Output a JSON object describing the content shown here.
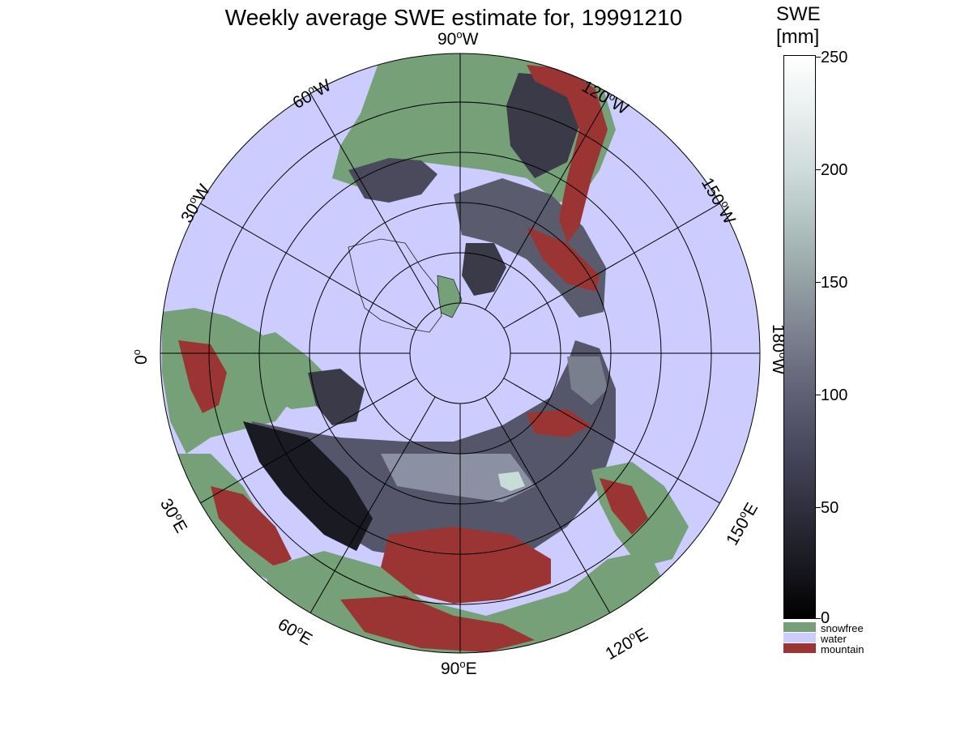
{
  "title": "Weekly average SWE estimate for, 19991210",
  "map": {
    "projection": "north-polar azimuthal",
    "longitude_labels": [
      {
        "key": "90W",
        "deg": "90",
        "dir": "W"
      },
      {
        "key": "120W",
        "deg": "120",
        "dir": "W"
      },
      {
        "key": "150W",
        "deg": "150",
        "dir": "W"
      },
      {
        "key": "180W",
        "deg": "180",
        "dir": "W"
      },
      {
        "key": "150E",
        "deg": "150",
        "dir": "E"
      },
      {
        "key": "120E",
        "deg": "120",
        "dir": "E"
      },
      {
        "key": "90E",
        "deg": "90",
        "dir": "E"
      },
      {
        "key": "60E",
        "deg": "60",
        "dir": "E"
      },
      {
        "key": "30E",
        "deg": "30",
        "dir": "E"
      },
      {
        "key": "0",
        "deg": "0",
        "dir": ""
      },
      {
        "key": "30W",
        "deg": "30",
        "dir": "W"
      },
      {
        "key": "60W",
        "deg": "60",
        "dir": "W"
      }
    ],
    "colors": {
      "water": "#ccccff",
      "snowfree": "#76a077",
      "mountain": "#9b3533",
      "snow_low": "#1a1a22",
      "snow_high": "#c8dcd8"
    }
  },
  "colorbar": {
    "title_line1": "SWE",
    "title_line2": "[mm]",
    "ticks": [
      "250",
      "200",
      "150",
      "100",
      "50",
      "0"
    ],
    "range": [
      0,
      250
    ],
    "categories": [
      {
        "label": "snowfree",
        "color": "#76a077"
      },
      {
        "label": "water",
        "color": "#ccccff"
      },
      {
        "label": "mountain",
        "color": "#9b3533"
      }
    ]
  }
}
